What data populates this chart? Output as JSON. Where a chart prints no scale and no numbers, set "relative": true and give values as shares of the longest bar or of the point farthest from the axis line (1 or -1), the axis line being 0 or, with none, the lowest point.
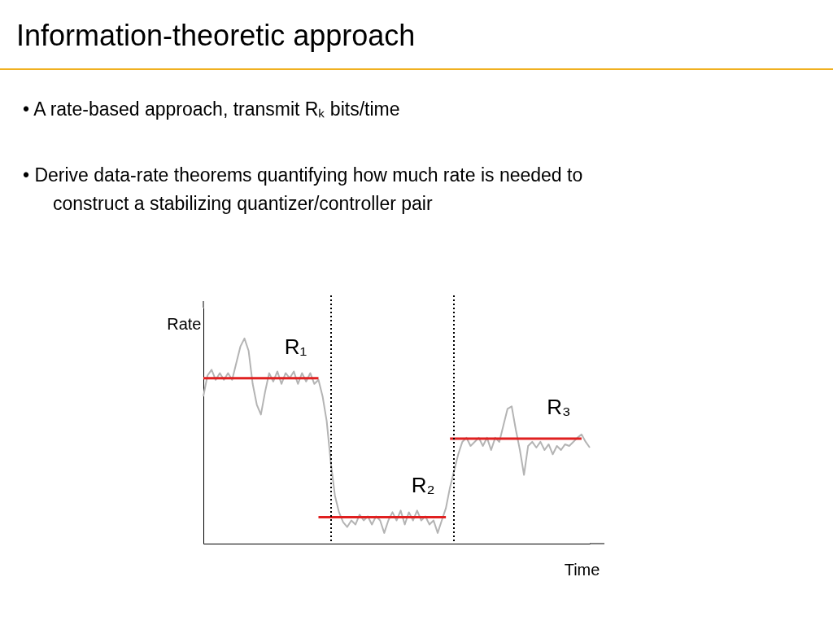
{
  "chart_data": {
    "type": "line",
    "relative": true,
    "title": "Information-theoretic approach",
    "xlabel": "Time",
    "ylabel": "Rate",
    "grid": false,
    "marker": "none",
    "legend": false,
    "annotations": [
      "• A rate-based approach, transmit Rₖ bits/time",
      "• Derive data-rate theorems quantifying how much rate is needed to construct a stabilizing quantizer/controller pair"
    ],
    "categories": [
      null,
      null,
      null,
      null,
      null,
      null,
      null,
      null,
      null,
      null,
      null,
      null,
      null,
      null,
      null,
      null,
      null,
      null,
      null,
      null,
      null,
      null,
      null,
      null,
      null,
      null,
      null,
      null,
      null,
      null,
      null,
      null,
      null,
      null,
      null,
      null,
      null,
      null,
      null,
      null,
      null,
      null,
      null,
      null,
      null,
      null,
      null,
      null,
      null,
      null,
      null,
      null,
      null,
      null,
      null,
      null,
      null,
      null,
      null,
      null,
      null,
      null,
      null,
      null,
      null,
      null,
      null,
      null,
      null,
      null,
      null,
      null,
      null,
      null,
      null,
      null,
      null,
      null,
      null,
      null,
      null,
      null,
      null,
      null,
      null,
      null,
      null,
      null,
      null,
      null,
      null,
      null,
      null,
      null,
      null
    ],
    "series": [
      {
        "color": "#b4b4b4",
        "values": [
          0.718,
          0.819,
          0.847,
          0.798,
          0.831,
          0.798,
          0.831,
          0.798,
          0.879,
          0.96,
          1.0,
          0.94,
          0.778,
          0.677,
          0.629,
          0.738,
          0.831,
          0.79,
          0.839,
          0.778,
          0.831,
          0.806,
          0.839,
          0.778,
          0.831,
          0.79,
          0.831,
          0.778,
          0.798,
          0.718,
          0.597,
          0.395,
          0.234,
          0.153,
          0.105,
          0.081,
          0.113,
          0.093,
          0.141,
          0.113,
          0.133,
          0.093,
          0.133,
          0.113,
          0.052,
          0.113,
          0.153,
          0.113,
          0.161,
          0.093,
          0.153,
          0.113,
          0.161,
          0.113,
          0.133,
          0.093,
          0.113,
          0.052,
          0.113,
          0.173,
          0.274,
          0.355,
          0.435,
          0.496,
          0.516,
          0.476,
          0.496,
          0.516,
          0.476,
          0.516,
          0.456,
          0.516,
          0.496,
          0.577,
          0.657,
          0.669,
          0.556,
          0.456,
          0.335,
          0.476,
          0.496,
          0.468,
          0.496,
          0.456,
          0.484,
          0.435,
          0.476,
          0.456,
          0.484,
          0.476,
          0.496,
          0.516,
          0.532,
          0.496,
          0.468
        ]
      },
      {
        "name": "R₁",
        "color": "#e02020",
        "values": [
          0.806,
          0.806,
          0.806,
          0.806,
          0.806,
          0.806,
          0.806,
          0.806,
          0.806,
          0.806,
          0.806,
          0.806,
          0.806,
          0.806,
          0.806,
          0.806,
          0.806,
          0.806,
          0.806,
          0.806,
          0.806,
          0.806,
          0.806,
          0.806,
          0.806,
          0.806,
          0.806,
          0.806,
          0.806,
          null,
          null,
          null,
          null,
          null,
          null,
          null,
          null,
          null,
          null,
          null,
          null,
          null,
          null,
          null,
          null,
          null,
          null,
          null,
          null,
          null,
          null,
          null,
          null,
          null,
          null,
          null,
          null,
          null,
          null,
          null,
          null,
          null,
          null,
          null,
          null,
          null,
          null,
          null,
          null,
          null,
          null,
          null,
          null,
          null,
          null,
          null,
          null,
          null,
          null,
          null,
          null,
          null,
          null,
          null,
          null,
          null,
          null,
          null,
          null,
          null,
          null,
          null,
          null,
          null,
          null
        ]
      },
      {
        "name": "R₂",
        "color": "#e02020",
        "values": [
          null,
          null,
          null,
          null,
          null,
          null,
          null,
          null,
          null,
          null,
          null,
          null,
          null,
          null,
          null,
          null,
          null,
          null,
          null,
          null,
          null,
          null,
          null,
          null,
          null,
          null,
          null,
          null,
          0.129,
          0.129,
          0.129,
          0.129,
          0.129,
          0.129,
          0.129,
          0.129,
          0.129,
          0.129,
          0.129,
          0.129,
          0.129,
          0.129,
          0.129,
          0.129,
          0.129,
          0.129,
          0.129,
          0.129,
          0.129,
          0.129,
          0.129,
          0.129,
          0.129,
          0.129,
          0.129,
          0.129,
          0.129,
          0.129,
          0.129,
          0.129,
          null,
          null,
          null,
          null,
          null,
          null,
          null,
          null,
          null,
          null,
          null,
          null,
          null,
          null,
          null,
          null,
          null,
          null,
          null,
          null,
          null,
          null,
          null,
          null,
          null,
          null,
          null,
          null,
          null,
          null,
          null,
          null,
          null,
          null,
          null
        ]
      },
      {
        "name": "R₃",
        "color": "#e02020",
        "values": [
          null,
          null,
          null,
          null,
          null,
          null,
          null,
          null,
          null,
          null,
          null,
          null,
          null,
          null,
          null,
          null,
          null,
          null,
          null,
          null,
          null,
          null,
          null,
          null,
          null,
          null,
          null,
          null,
          null,
          null,
          null,
          null,
          null,
          null,
          null,
          null,
          null,
          null,
          null,
          null,
          null,
          null,
          null,
          null,
          null,
          null,
          null,
          null,
          null,
          null,
          null,
          null,
          null,
          null,
          null,
          null,
          null,
          null,
          null,
          null,
          0.512,
          0.512,
          0.512,
          0.512,
          0.512,
          0.512,
          0.512,
          0.512,
          0.512,
          0.512,
          0.512,
          0.512,
          0.512,
          0.512,
          0.512,
          0.512,
          0.512,
          0.512,
          0.512,
          0.512,
          0.512,
          0.512,
          0.512,
          0.512,
          0.512,
          0.512,
          0.512,
          0.512,
          0.512,
          0.512,
          0.512,
          0.512,
          0.512,
          null,
          null
        ]
      }
    ]
  }
}
